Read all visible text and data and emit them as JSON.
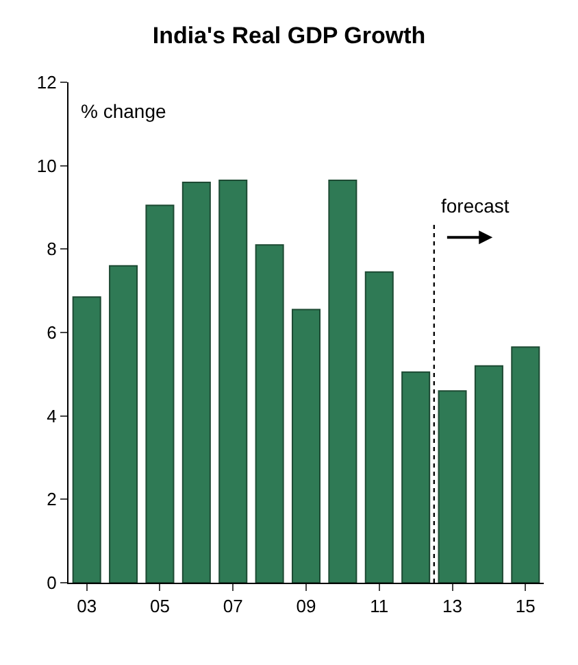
{
  "chart_data": {
    "type": "bar",
    "title": "India's Real GDP Growth",
    "ylabel": "% change",
    "x": [
      2003,
      2004,
      2005,
      2006,
      2007,
      2008,
      2009,
      2010,
      2011,
      2012,
      2013,
      2014,
      2015
    ],
    "values": [
      6.85,
      7.6,
      9.05,
      9.6,
      9.65,
      8.1,
      6.55,
      9.65,
      7.45,
      5.05,
      4.6,
      5.2,
      5.65
    ],
    "color": "#2f7a55",
    "xlim": [
      2002.5,
      2015.5
    ],
    "xticks": [
      {
        "value": 2003,
        "label": "03"
      },
      {
        "value": 2005,
        "label": "05"
      },
      {
        "value": 2007,
        "label": "07"
      },
      {
        "value": 2009,
        "label": "09"
      },
      {
        "value": 2011,
        "label": "11"
      },
      {
        "value": 2013,
        "label": "13"
      },
      {
        "value": 2015,
        "label": "15"
      }
    ],
    "ylim": [
      0,
      12
    ],
    "yticks": [
      0,
      2,
      4,
      6,
      8,
      10,
      12
    ],
    "ref_lines": [
      {
        "axis": "x",
        "value": 2012.5,
        "line_style": "dotted",
        "color": "#000000"
      }
    ],
    "annotations": [
      "forecast"
    ]
  }
}
